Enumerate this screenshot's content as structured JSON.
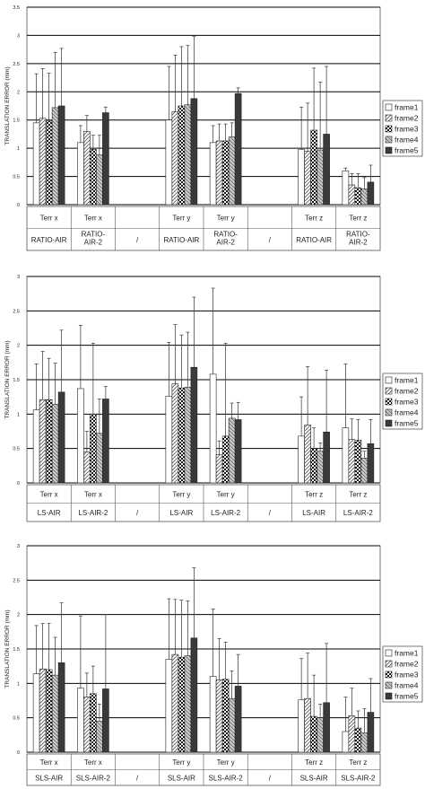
{
  "colors": {
    "frame1": "#ffffff",
    "frame2": "#d9d9d9",
    "frame3": "#ffffff",
    "frame4": "#bfbfbf",
    "frame5": "#3a3a3a",
    "axis": "#000000",
    "grid": "#000000"
  },
  "chart_data": [
    {
      "type": "bar",
      "ylabel": "TRANSLATION ERROR (mm)",
      "ylim": [
        0,
        3.5
      ],
      "yticks": [
        "0",
        "0.5",
        "1",
        "1.5",
        "2",
        "2.5",
        "3",
        "3.5"
      ],
      "grid": true,
      "legend": "right",
      "categories": [
        "Terr x",
        "Terr x",
        "",
        "Terr y",
        "Terr y",
        "",
        "Terr z",
        "Terr z"
      ],
      "groups": [
        "RATIO-AIR",
        "RATIO-AIR-2",
        "/",
        "RATIO-AIR",
        "RATIO-AIR-2",
        "/",
        "RATIO-AIR",
        "RATIO-AIR-2"
      ],
      "series": [
        {
          "name": "frame1",
          "values": [
            1.45,
            1.1,
            null,
            1.5,
            1.1,
            null,
            0.98,
            0.6
          ],
          "err": [
            0.87,
            0.3,
            null,
            0.95,
            0.3,
            null,
            0.75,
            0.05
          ]
        },
        {
          "name": "frame2",
          "values": [
            1.53,
            1.3,
            null,
            1.65,
            1.13,
            null,
            0.95,
            0.35
          ],
          "err": [
            0.88,
            0.28,
            null,
            1.0,
            0.3,
            null,
            0.85,
            0.2
          ]
        },
        {
          "name": "frame3",
          "values": [
            1.48,
            0.98,
            null,
            1.75,
            1.13,
            null,
            1.32,
            0.3
          ],
          "err": [
            0.85,
            0.25,
            null,
            1.05,
            0.3,
            null,
            1.1,
            0.25
          ]
        },
        {
          "name": "frame4",
          "values": [
            1.72,
            0.88,
            null,
            1.77,
            1.2,
            null,
            0.97,
            0.28
          ],
          "err": [
            0.98,
            0.35,
            null,
            1.05,
            0.25,
            null,
            1.2,
            0.2
          ]
        },
        {
          "name": "frame5",
          "values": [
            1.75,
            1.63,
            null,
            1.88,
            1.97,
            null,
            1.25,
            0.4
          ],
          "err": [
            1.02,
            0.1,
            null,
            1.1,
            0.1,
            null,
            1.2,
            0.3
          ]
        }
      ]
    },
    {
      "type": "bar",
      "ylabel": "TRANSLATION ERROR (mm)",
      "ylim": [
        0,
        3
      ],
      "yticks": [
        "0",
        "0.5",
        "1",
        "1.5",
        "2",
        "2.5",
        "3"
      ],
      "grid": true,
      "legend": "right",
      "categories": [
        "Terr x",
        "Terr x",
        "",
        "Terr y",
        "Terr y",
        "",
        "Terr z",
        "Terr z"
      ],
      "groups": [
        "LS-AIR",
        "LS-AIR-2",
        "/",
        "LS-AIR",
        "LS-AIR-2",
        "/",
        "LS-AIR",
        "LS-AIR-2"
      ],
      "series": [
        {
          "name": "frame1",
          "values": [
            1.06,
            1.37,
            null,
            1.26,
            1.58,
            null,
            0.68,
            0.8
          ],
          "err": [
            0.67,
            0.92,
            null,
            0.78,
            1.25,
            null,
            0.57,
            0.93
          ]
        },
        {
          "name": "frame2",
          "values": [
            1.21,
            0.45,
            null,
            1.44,
            0.41,
            null,
            0.84,
            0.63
          ],
          "err": [
            0.7,
            0.3,
            null,
            0.86,
            0.2,
            null,
            0.85,
            0.3
          ]
        },
        {
          "name": "frame3",
          "values": [
            1.21,
            1.0,
            null,
            1.38,
            0.68,
            null,
            0.5,
            0.62
          ],
          "err": [
            0.6,
            1.03,
            null,
            0.77,
            1.35,
            null,
            0.3,
            0.3
          ]
        },
        {
          "name": "frame4",
          "values": [
            1.14,
            0.72,
            null,
            1.39,
            0.94,
            null,
            0.46,
            0.36
          ],
          "err": [
            0.6,
            0.5,
            null,
            0.8,
            0.22,
            null,
            0.12,
            0.1
          ]
        },
        {
          "name": "frame5",
          "values": [
            1.32,
            1.22,
            null,
            1.68,
            0.92,
            null,
            0.74,
            0.57
          ],
          "err": [
            0.9,
            0.18,
            null,
            1.02,
            0.25,
            null,
            0.9,
            0.35
          ]
        }
      ]
    },
    {
      "type": "bar",
      "ylabel": "TRANSLATION ERROR (mm)",
      "ylim": [
        0,
        3
      ],
      "yticks": [
        "0",
        "0.5",
        "1",
        "1.5",
        "2",
        "2.5",
        "3"
      ],
      "grid": true,
      "legend": "right",
      "categories": [
        "Terr x",
        "Terr x",
        "",
        "Terr y",
        "Terr y",
        "",
        "Terr z",
        "Terr z"
      ],
      "groups": [
        "SLS-AIR",
        "SLS-AIR-2",
        "/",
        "SLS-AIR",
        "SLS-AIR-2",
        "/",
        "SLS-AIR",
        "SLS-AIR-2"
      ],
      "series": [
        {
          "name": "frame1",
          "values": [
            1.14,
            0.93,
            null,
            1.35,
            1.1,
            null,
            0.76,
            0.3
          ],
          "err": [
            0.7,
            1.05,
            null,
            0.88,
            0.98,
            null,
            0.6,
            0.5
          ]
        },
        {
          "name": "frame2",
          "values": [
            1.21,
            0.8,
            null,
            1.42,
            1.05,
            null,
            0.78,
            0.53
          ],
          "err": [
            0.66,
            0.35,
            null,
            0.8,
            0.6,
            null,
            0.66,
            0.4
          ]
        },
        {
          "name": "frame3",
          "values": [
            1.2,
            0.85,
            null,
            1.38,
            1.06,
            null,
            0.52,
            0.35
          ],
          "err": [
            0.67,
            0.4,
            null,
            0.83,
            0.54,
            null,
            0.6,
            0.25
          ]
        },
        {
          "name": "frame4",
          "values": [
            1.12,
            0.45,
            null,
            1.4,
            0.78,
            null,
            0.5,
            0.28
          ],
          "err": [
            0.55,
            0.25,
            null,
            0.8,
            0.4,
            null,
            0.2,
            0.35
          ]
        },
        {
          "name": "frame5",
          "values": [
            1.3,
            0.92,
            null,
            1.66,
            0.96,
            null,
            0.72,
            0.58
          ],
          "err": [
            0.87,
            1.08,
            null,
            1.02,
            0.46,
            null,
            0.86,
            0.49
          ]
        }
      ]
    }
  ]
}
